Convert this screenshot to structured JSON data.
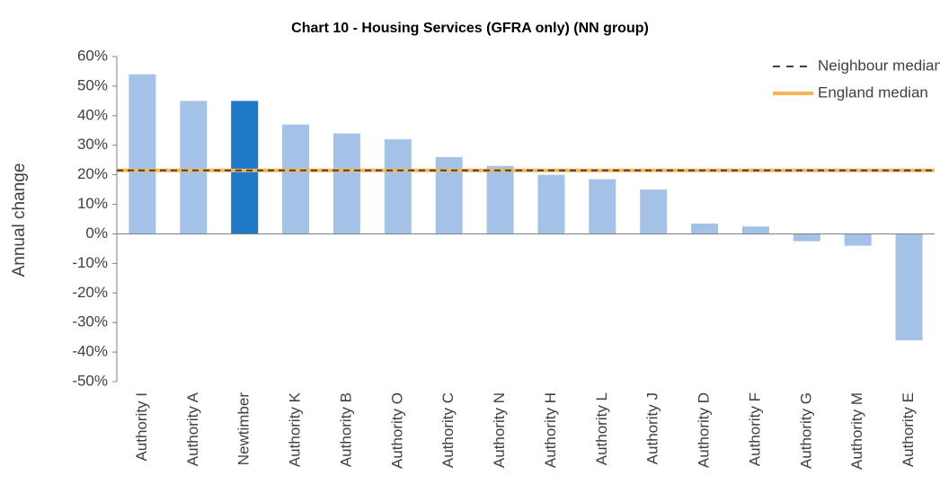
{
  "chart_data": {
    "type": "bar",
    "title": "Chart 10 - Housing Services (GFRA only) (NN group)",
    "y_label": "Annual change",
    "categories": [
      "Authority I",
      "Authority A",
      "Newtimber",
      "Authority K",
      "Authority B",
      "Authority O",
      "Authority C",
      "Authority N",
      "Authority H",
      "Authority L",
      "Authority J",
      "Authority D",
      "Authority F",
      "Authority G",
      "Authority M",
      "Authority E"
    ],
    "values": [
      54,
      45,
      45,
      37,
      34,
      32,
      26,
      23,
      20,
      18.5,
      15,
      3.5,
      2.5,
      -2.5,
      -4,
      -36
    ],
    "colors": [
      "#a4c2e8",
      "#a4c2e8",
      "#1f78c8",
      "#a4c2e8",
      "#a4c2e8",
      "#a4c2e8",
      "#a4c2e8",
      "#a4c2e8",
      "#a4c2e8",
      "#a4c2e8",
      "#a4c2e8",
      "#a4c2e8",
      "#a4c2e8",
      "#a4c2e8",
      "#a4c2e8",
      "#a4c2e8"
    ],
    "lines": [
      {
        "name": "Neighbour median",
        "value": 21.5,
        "color": "#404040",
        "style": "dashed"
      },
      {
        "name": "England median",
        "value": 21.5,
        "color": "#f9b552",
        "style": "solid"
      }
    ],
    "legend": "top-right",
    "ylim": [
      -50,
      60
    ],
    "yticks": [
      {
        "value": -50,
        "label": "-50%"
      },
      {
        "value": -40,
        "label": "-40%"
      },
      {
        "value": -30,
        "label": "-30%"
      },
      {
        "value": -20,
        "label": "-20%"
      },
      {
        "value": -10,
        "label": "-10%"
      },
      {
        "value": 0,
        "label": "0%"
      },
      {
        "value": 10,
        "label": "10%"
      },
      {
        "value": 20,
        "label": "20%"
      },
      {
        "value": 30,
        "label": "30%"
      },
      {
        "value": 40,
        "label": "40%"
      },
      {
        "value": 50,
        "label": "50%"
      },
      {
        "value": 60,
        "label": "60%"
      }
    ]
  }
}
